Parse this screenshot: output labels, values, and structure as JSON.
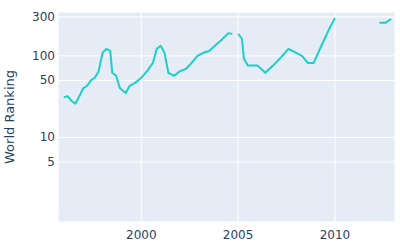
{
  "chart_data": {
    "type": "line",
    "y_label": "World Ranking",
    "x": [
      1996.0,
      1996.2,
      1996.4,
      1996.6,
      1996.8,
      1997.0,
      1997.2,
      1997.4,
      1997.6,
      1997.8,
      1998.0,
      1998.2,
      1998.4,
      1998.5,
      1998.7,
      1998.9,
      1999.2,
      1999.4,
      1999.7,
      2000.0,
      2000.3,
      2000.6,
      2000.8,
      2001.0,
      2001.2,
      2001.4,
      2001.7,
      2002.0,
      2002.3,
      2002.6,
      2002.9,
      2003.2,
      2003.5,
      2003.8,
      2004.1,
      2004.5,
      2004.7,
      2004.85,
      2005.0,
      2005.2,
      2005.3,
      2005.5,
      2006.0,
      2006.4,
      2006.8,
      2007.2,
      2007.6,
      2008.0,
      2008.3,
      2008.6,
      2008.9,
      2009.3,
      2009.7,
      2010.0,
      2011.2,
      2012.3,
      2012.6,
      2012.9
    ],
    "series": [
      {
        "name": "World Ranking",
        "color": "#1ccfc9",
        "values": [
          31,
          32,
          28,
          26,
          32,
          40,
          43,
          50,
          54,
          65,
          109,
          122,
          115,
          62,
          57,
          40,
          35,
          43,
          47,
          54,
          65,
          82,
          122,
          133,
          109,
          62,
          57,
          65,
          69,
          82,
          100,
          109,
          115,
          133,
          153,
          190,
          186,
          null,
          186,
          161,
          92,
          76,
          76,
          62,
          76,
          95,
          122,
          109,
          100,
          82,
          82,
          133,
          213,
          290,
          null,
          254,
          254,
          283
        ]
      }
    ],
    "xlim": [
      1995.7,
      2013.1
    ],
    "xticks": [
      2000,
      2005,
      2010
    ],
    "ylim": [
      0.92,
      345
    ],
    "yticks": [
      5,
      10,
      50,
      100,
      300
    ],
    "log": "y",
    "grid": true
  }
}
